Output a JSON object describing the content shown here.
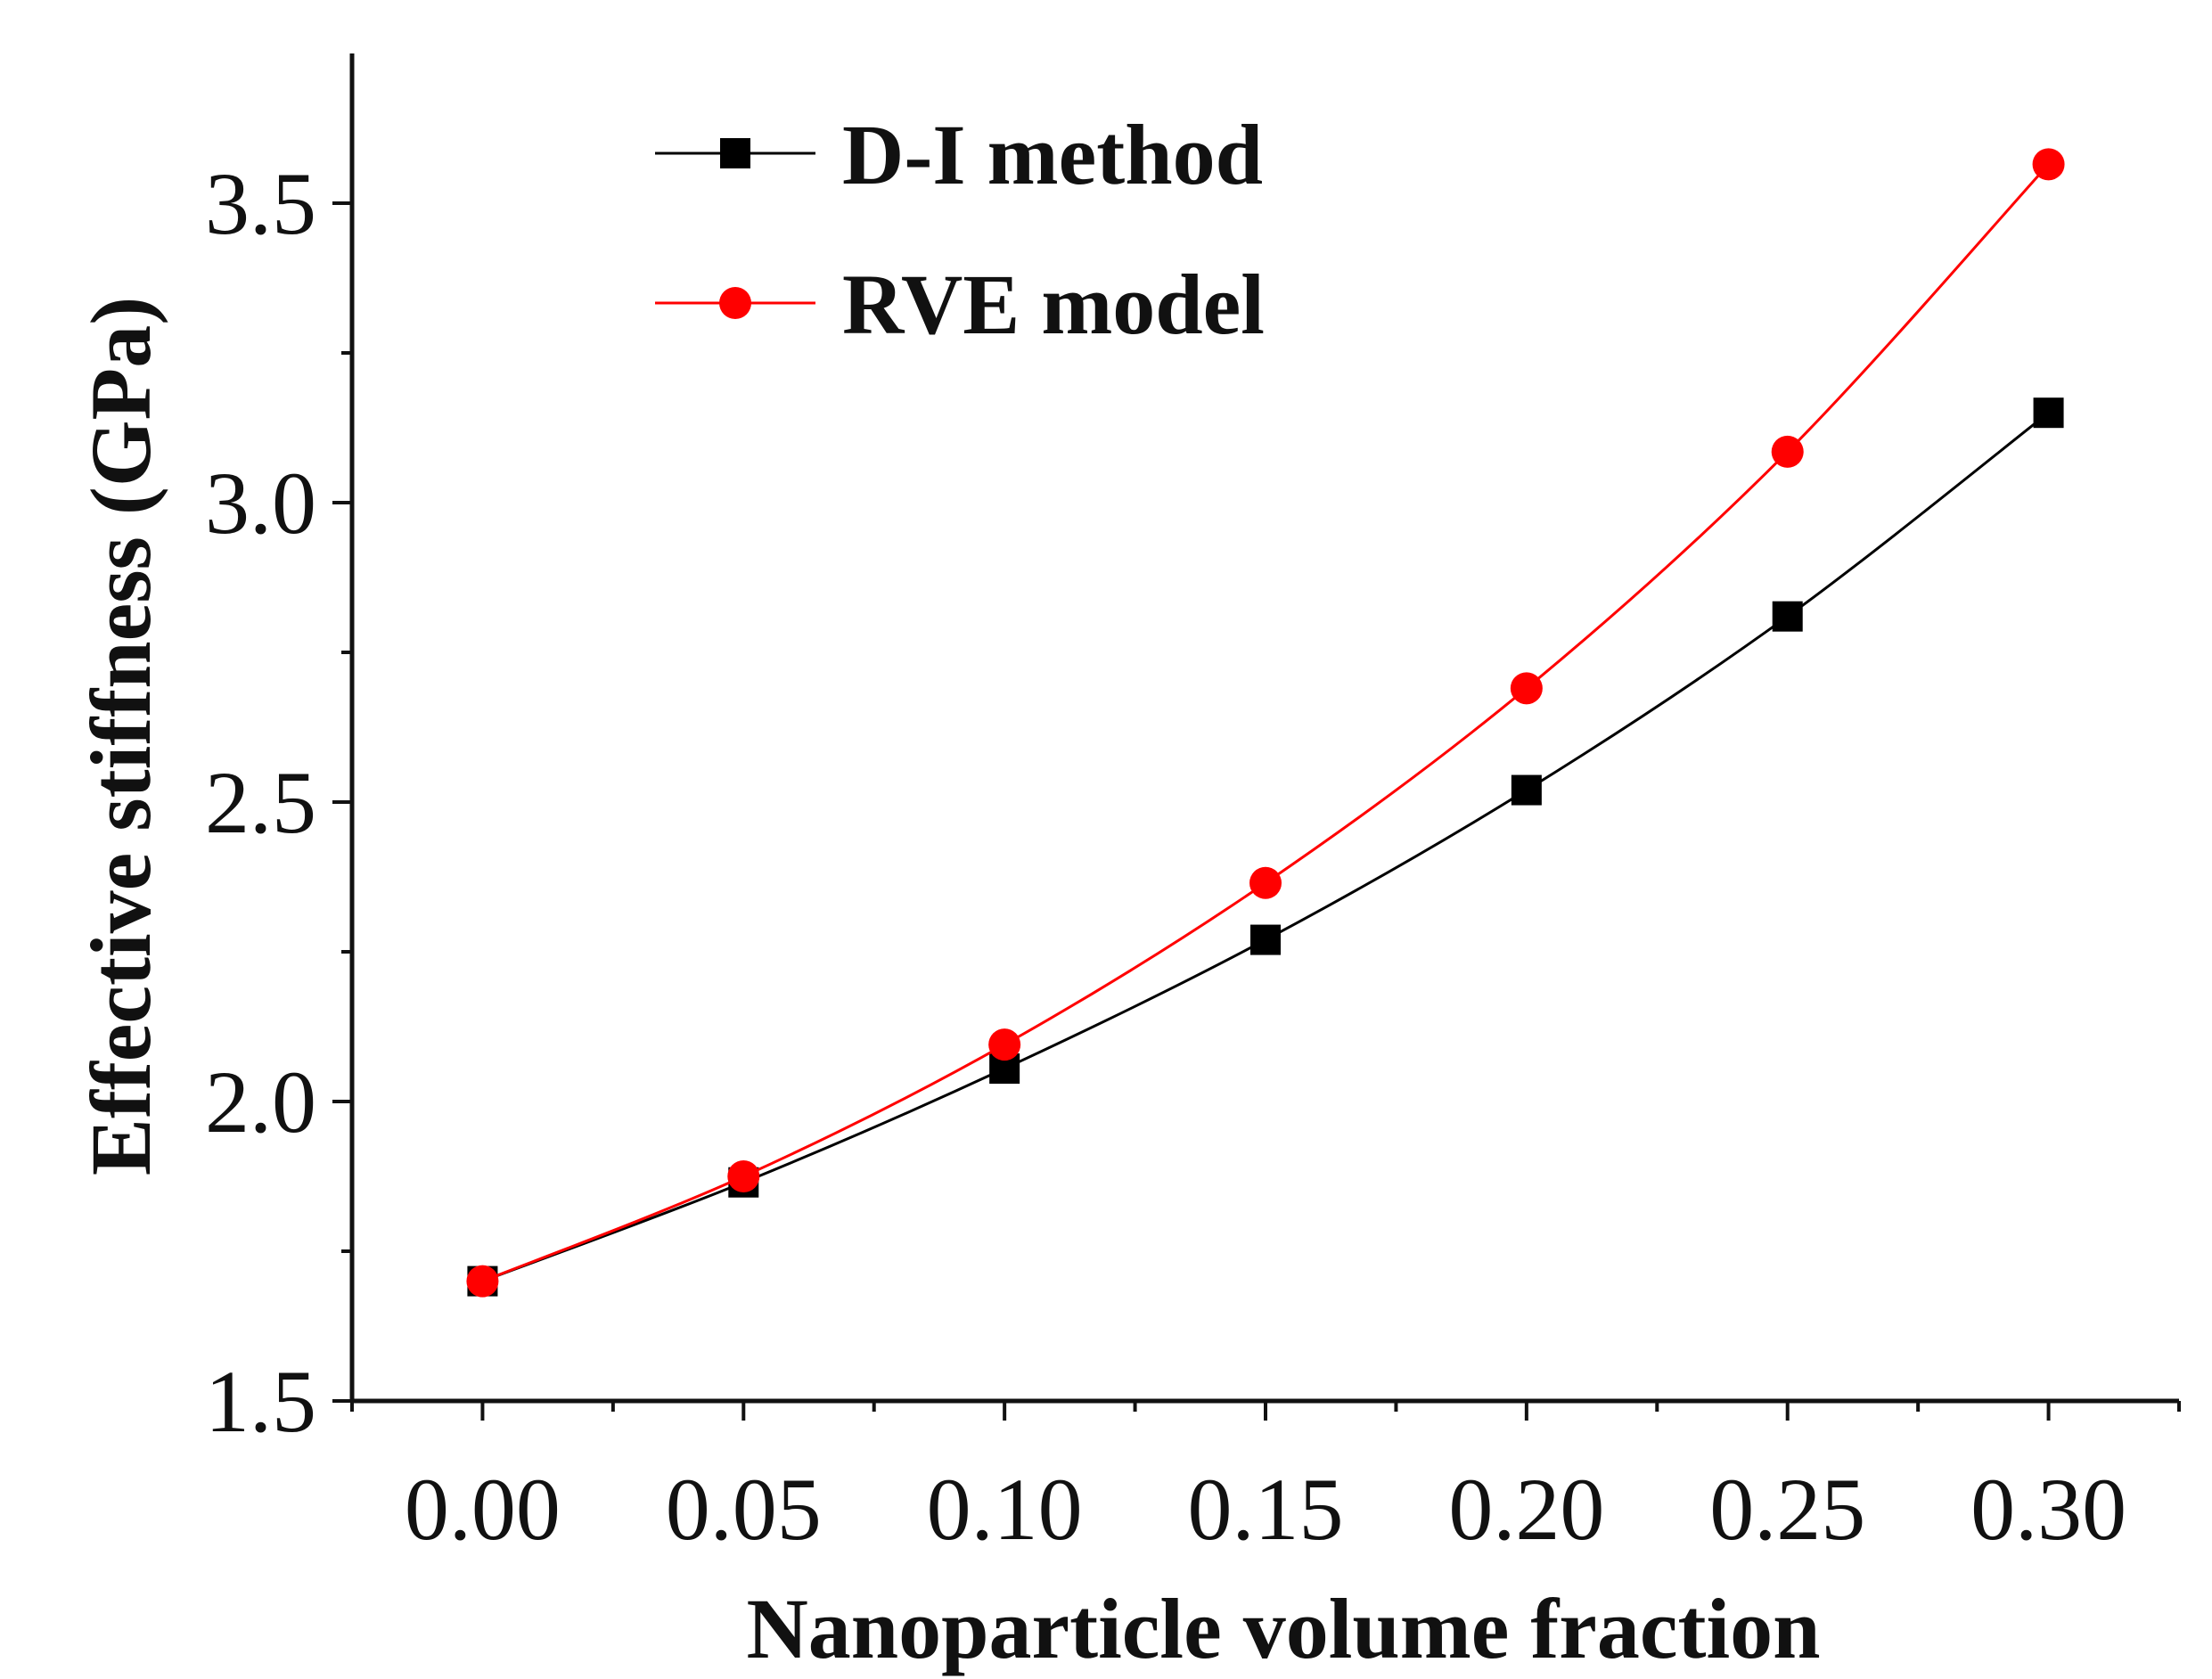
{
  "chart_data": {
    "type": "line",
    "title": "",
    "xlabel": "Nanoparticle volume fraction",
    "ylabel": "Effective stiffness (GPa)",
    "x": [
      0.0,
      0.05,
      0.1,
      0.15,
      0.2,
      0.25,
      0.3
    ],
    "xlim": [
      -0.025,
      0.325
    ],
    "ylim": [
      1.5,
      3.75
    ],
    "x_ticks": [
      "0.00",
      "0.05",
      "0.10",
      "0.15",
      "0.20",
      "0.25",
      "0.30"
    ],
    "y_ticks": [
      "1.5",
      "2.0",
      "2.5",
      "3.0",
      "3.5"
    ],
    "grid": false,
    "legend_position": "top-left",
    "series": [
      {
        "name": "D-I method",
        "marker": "square",
        "color": "#000000",
        "values": [
          1.7,
          1.865,
          2.055,
          2.27,
          2.52,
          2.81,
          3.15
        ]
      },
      {
        "name": "RVE model",
        "marker": "circle",
        "color": "#ff0000",
        "values": [
          1.7,
          1.875,
          2.095,
          2.365,
          2.69,
          3.085,
          3.565
        ]
      }
    ]
  }
}
